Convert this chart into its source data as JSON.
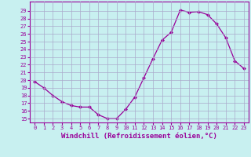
{
  "x": [
    0,
    1,
    2,
    3,
    4,
    5,
    6,
    7,
    8,
    9,
    10,
    11,
    12,
    13,
    14,
    15,
    16,
    17,
    18,
    19,
    20,
    21,
    22,
    23
  ],
  "y": [
    19.8,
    19.0,
    18.0,
    17.2,
    16.7,
    16.5,
    16.5,
    15.5,
    15.0,
    15.0,
    16.2,
    17.8,
    20.3,
    22.8,
    25.2,
    26.2,
    29.1,
    28.8,
    28.9,
    28.5,
    27.3,
    25.5,
    22.5,
    21.5
  ],
  "line_color": "#990099",
  "marker": "D",
  "marker_size": 2,
  "background_color": "#c8f0f0",
  "grid_color": "#aaaacc",
  "xlabel": "Windchill (Refroidissement éolien,°C)",
  "xlabel_color": "#990099",
  "ylabel_ticks": [
    15,
    16,
    17,
    18,
    19,
    20,
    21,
    22,
    23,
    24,
    25,
    26,
    27,
    28,
    29
  ],
  "ylim": [
    14.5,
    30.2
  ],
  "xlim": [
    -0.5,
    23.5
  ],
  "xticks": [
    0,
    1,
    2,
    3,
    4,
    5,
    6,
    7,
    8,
    9,
    10,
    11,
    12,
    13,
    14,
    15,
    16,
    17,
    18,
    19,
    20,
    21,
    22,
    23
  ],
  "tick_color": "#990099",
  "tick_fontsize": 5,
  "xlabel_fontsize": 6.5,
  "spine_color": "#990099"
}
